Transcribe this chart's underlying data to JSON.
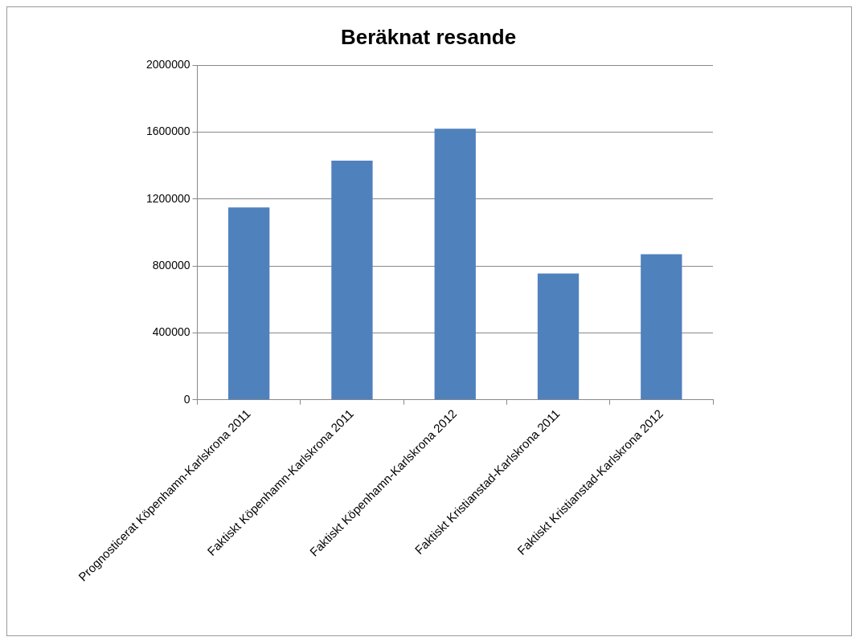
{
  "chart_data": {
    "type": "bar",
    "title": "Beräknat resande",
    "categories": [
      "Prognosticerat Köpenhamn-Karlskrona 2011",
      "Faktiskt Köpenhamn-Karlskrona 2011",
      "Faktiskt Köpenhamn-Karlskrona 2012",
      "Faktiskt Kristianstad-Karlskrona 2011",
      "Faktiskt Kristianstad-Karlskrona 2012"
    ],
    "values": [
      1150000,
      1430000,
      1620000,
      755000,
      870000
    ],
    "color": "#4f81bd",
    "ylim": [
      0,
      2000000
    ],
    "yticks": [
      0,
      400000,
      800000,
      1200000,
      1600000,
      2000000
    ],
    "grid": "y",
    "legend": false
  }
}
